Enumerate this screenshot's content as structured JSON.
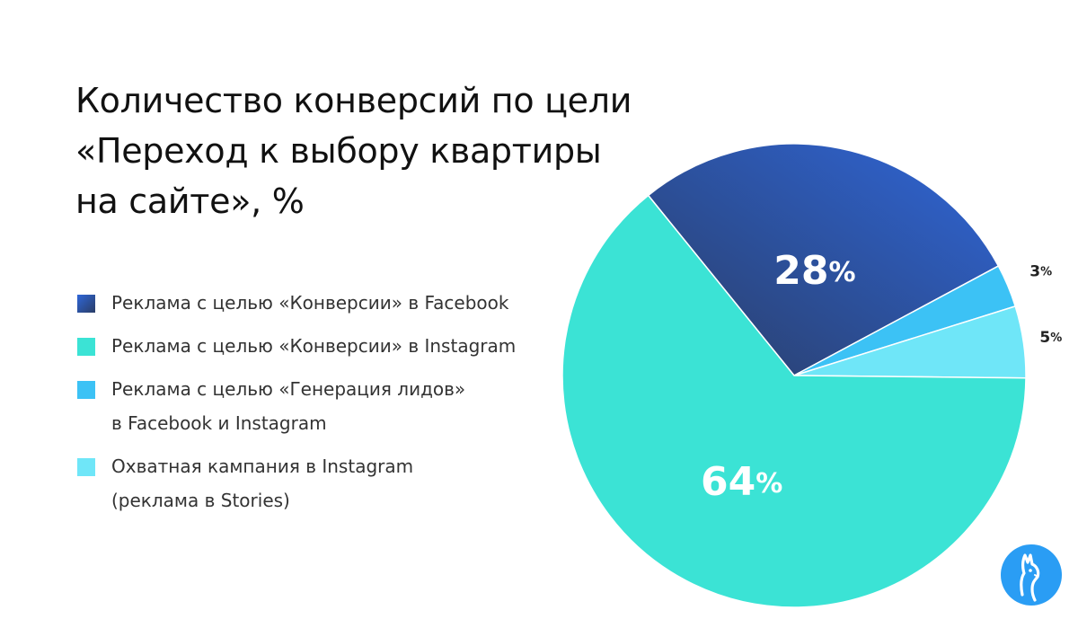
{
  "title": {
    "line1": "Количество конверсий по цели",
    "line2": "«Переход к выбору квартиры",
    "line3": "на сайте», %"
  },
  "legend": [
    {
      "lines": [
        "Реклама с целью «Конверсии» в Facebook"
      ],
      "color": "#2b4a9a"
    },
    {
      "lines": [
        "Реклама с целью «Конверсии» в Instagram"
      ],
      "color": "#3be3d5"
    },
    {
      "lines": [
        "Реклама с целью «Генерация лидов»",
        "в Facebook и Instagram"
      ],
      "color": "#3cc2f5"
    },
    {
      "lines": [
        "Охватная кампания в Instagram",
        "(реклама в Stories)"
      ],
      "color": "#6fe6f8"
    }
  ],
  "chart_data": {
    "type": "pie",
    "title": "Количество конверсий по цели «Переход к выбору квартиры на сайте», %",
    "slices": [
      {
        "label": "Реклама с целью «Конверсии» в Facebook",
        "value": 28,
        "display": "28",
        "color": "#2b4a9a"
      },
      {
        "label": "Реклама с целью «Генерация лидов» в Facebook и Instagram",
        "value": 3,
        "display": "3",
        "color": "#3cc2f5"
      },
      {
        "label": "Охватная кампания в Instagram (реклама в Stories)",
        "value": 5,
        "display": "5",
        "color": "#6fe6f8"
      },
      {
        "label": "Реклама с целью «Конверсии» в Instagram",
        "value": 64,
        "display": "64",
        "color": "#3be3d5"
      }
    ],
    "percent_sign": "%"
  },
  "logo": {
    "icon": "llama-icon",
    "color": "#2a9df4"
  }
}
